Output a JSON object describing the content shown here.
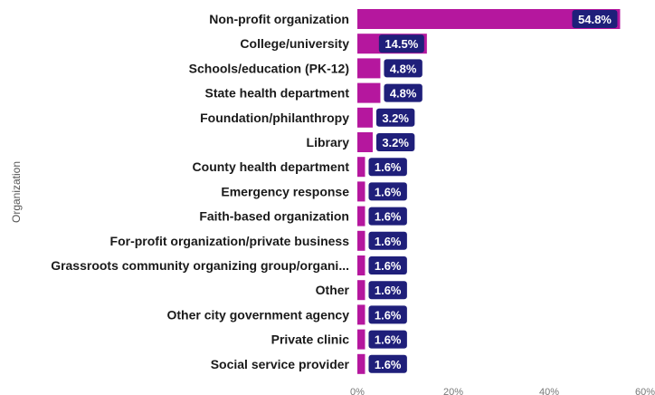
{
  "chart_data": {
    "type": "bar",
    "orientation": "horizontal",
    "ylabel": "Organization",
    "xlabel": "",
    "xlim": [
      0,
      60
    ],
    "x_ticks": [
      "0%",
      "20%",
      "40%",
      "60%"
    ],
    "categories": [
      "Non-profit organization",
      "College/university",
      "Schools/education (PK-12)",
      "State health department",
      "Foundation/philanthropy",
      "Library",
      "County health department",
      "Emergency response",
      "Faith-based organization",
      "For-profit organization/private business",
      "Grassroots community organizing group/organi...",
      "Other",
      "Other city government agency",
      "Private clinic",
      "Social service provider"
    ],
    "values": [
      54.8,
      14.5,
      4.8,
      4.8,
      3.2,
      3.2,
      1.6,
      1.6,
      1.6,
      1.6,
      1.6,
      1.6,
      1.6,
      1.6,
      1.6
    ],
    "value_labels": [
      "54.8%",
      "14.5%",
      "4.8%",
      "4.8%",
      "3.2%",
      "3.2%",
      "1.6%",
      "1.6%",
      "1.6%",
      "1.6%",
      "1.6%",
      "1.6%",
      "1.6%",
      "1.6%",
      "1.6%"
    ],
    "grid": false,
    "colors": {
      "bar": "#b5179e",
      "label_bg": "#1f1f7a",
      "label_text": "#ffffff"
    }
  }
}
